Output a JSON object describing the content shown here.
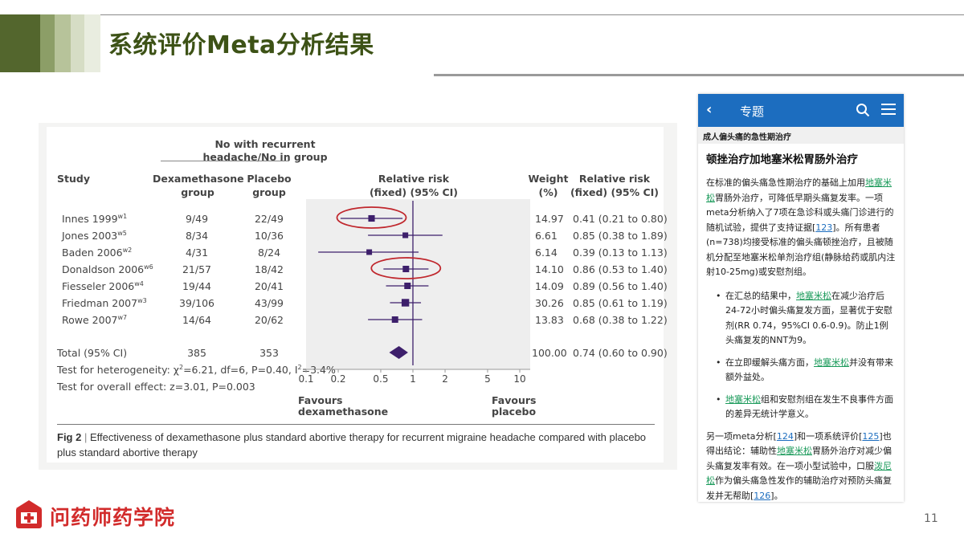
{
  "slide": {
    "title": "系统评价Meta分析结果",
    "page_number": "11",
    "logo_text": "问药师药学院",
    "header_colors": [
      "#53662d",
      "#8c9e67",
      "#b7c39a",
      "#d6ddc5",
      "#e9ede0"
    ]
  },
  "forest": {
    "header": {
      "group_line1": "No with recurrent",
      "group_line2": "headache/No in group",
      "study": "Study",
      "dex1": "Dexamethasone",
      "dex2": "group",
      "pla1": "Placebo",
      "pla2": "group",
      "rr1": "Relative risk",
      "rr2": "(fixed) (95% CI)",
      "w1": "Weight",
      "w2": "(%)",
      "rrc1": "Relative risk",
      "rrc2": "(fixed) (95% CI)"
    },
    "studies": [
      {
        "name": "Innes 1999",
        "sup": "w1",
        "dex": "9/49",
        "pla": "22/49",
        "weight": "14.97",
        "ci": "0.41 (0.21 to 0.80)",
        "rr": 0.41,
        "lo": 0.21,
        "hi": 0.8,
        "circled": true
      },
      {
        "name": "Jones 2003",
        "sup": "w5",
        "dex": "8/34",
        "pla": "10/36",
        "weight": "6.61",
        "ci": "0.85 (0.38 to 1.89)",
        "rr": 0.85,
        "lo": 0.38,
        "hi": 1.89,
        "circled": false
      },
      {
        "name": "Baden 2006",
        "sup": "w2",
        "dex": "4/31",
        "pla": "8/24",
        "weight": "6.14",
        "ci": "0.39 (0.13 to 1.13)",
        "rr": 0.39,
        "lo": 0.13,
        "hi": 1.13,
        "circled": false
      },
      {
        "name": "Donaldson 2006",
        "sup": "w6",
        "dex": "21/57",
        "pla": "18/42",
        "weight": "14.10",
        "ci": "0.86 (0.53 to 1.40)",
        "rr": 0.86,
        "lo": 0.53,
        "hi": 1.4,
        "circled": true
      },
      {
        "name": "Fiesseler 2006",
        "sup": "w4",
        "dex": "19/44",
        "pla": "20/41",
        "weight": "14.09",
        "ci": "0.89 (0.56 to 1.40)",
        "rr": 0.89,
        "lo": 0.56,
        "hi": 1.4,
        "circled": false
      },
      {
        "name": "Friedman 2007",
        "sup": "w3",
        "dex": "39/106",
        "pla": "43/99",
        "weight": "30.26",
        "ci": "0.85 (0.61 to 1.19)",
        "rr": 0.85,
        "lo": 0.61,
        "hi": 1.19,
        "circled": false
      },
      {
        "name": "Rowe 2007",
        "sup": "w7",
        "dex": "14/64",
        "pla": "20/62",
        "weight": "13.83",
        "ci": "0.68 (0.38 to 1.22)",
        "rr": 0.68,
        "lo": 0.38,
        "hi": 1.22,
        "circled": false
      }
    ],
    "total": {
      "name": "Total (95% CI)",
      "dex": "385",
      "pla": "353",
      "weight": "100.00",
      "ci": "0.74 (0.60 to 0.90)",
      "rr": 0.74,
      "lo": 0.6,
      "hi": 0.9
    },
    "heterogeneity_prefix": "Test for heterogeneity: χ",
    "heterogeneity_mid": "=6.21, df=6, P=0.40, I",
    "heterogeneity_end": "=3.4%",
    "overall": "Test for overall effect: z=3.01, P=0.003",
    "ticks": [
      "0.1",
      "0.2",
      "0.5",
      "1",
      "2",
      "5",
      "10"
    ],
    "tick_values": [
      0.1,
      0.2,
      0.5,
      1,
      2,
      5,
      10
    ],
    "favours_left1": "Favours",
    "favours_left2": "dexamethasone",
    "favours_right1": "Favours",
    "favours_right2": "placebo",
    "caption_label": "Fig 2",
    "caption_sep": "|",
    "caption_text": "Effectiveness of dexamethasone plus standard abortive therapy for recurrent migraine headache compared with placebo plus standard abortive therapy",
    "marker_color": "#3d1f6b",
    "circle_color": "#c0272d"
  },
  "phone": {
    "bar_title": "专题",
    "breadcrumb": "成人偏头痛的急性期治疗",
    "heading": "顿挫治疗加地塞米松胃肠外治疗",
    "p1_a": "在标准的偏头痛急性期治疗的基础上加用",
    "p1_link": "地塞米松",
    "p1_b": "胃肠外治疗，可降低早期头痛复发率。一项meta分析纳入了7项在急诊科或头痛门诊进行的随机试验，提供了支持证据[",
    "p1_ref": "123",
    "p1_c": "]。所有患者(n=738)均接受标准的偏头痛顿挫治疗，且被随机分配至地塞米松单剂治疗组(静脉给药或肌内注射10-25mg)或安慰剂组。",
    "b1_a": "在汇总的结果中，",
    "b1_link": "地塞米松",
    "b1_b": "在减少治疗后24-72小时偏头痛复发方面，显著优于安慰剂(RR 0.74，95%CI 0.6-0.9)。防止1例头痛复发的NNT为9。",
    "b2_a": "在立即缓解头痛方面，",
    "b2_link": "地塞米松",
    "b2_b": "并没有带来额外益处。",
    "b3_link": "地塞米松",
    "b3_b": "组和安慰剂组在发生不良事件方面的差异无统计学意义。",
    "p2_a": "另一项meta分析[",
    "p2_ref1": "124",
    "p2_b": "]和一项系统评价[",
    "p2_ref2": "125",
    "p2_c": "]也得出结论：辅助性",
    "p2_link1": "地塞米松",
    "p2_d": "胃肠外治疗对减少偏头痛复发率有效。在一项小型试验中，口服",
    "p2_link2": "泼尼松",
    "p2_e": "作为偏头痛急性发作的辅助治疗对预防头痛复发并无帮助[",
    "p2_ref3": "126",
    "p2_f": "]。"
  }
}
